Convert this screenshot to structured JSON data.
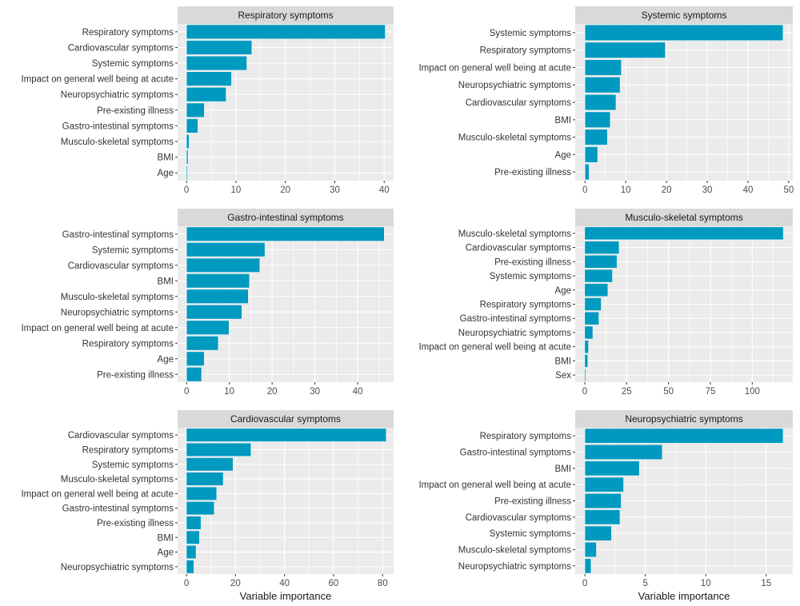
{
  "figure": {
    "bar_color": "#0099BF",
    "panel_bg": "#EBEBEB",
    "strip_bg": "#D9D9D9",
    "grid_color": "#FFFFFF"
  },
  "chart_data": [
    {
      "type": "bar",
      "orientation": "horizontal",
      "title": "Respiratory symptoms",
      "xlabel": "",
      "ylabel": "",
      "categories": [
        "Respiratory symptoms",
        "Cardiovascular symptoms",
        "Systemic symptoms",
        "Impact on general well being at acute",
        "Neuropsychiatric symptoms",
        "Pre-existing illness",
        "Gastro-intestinal symptoms",
        "Musculo-skeletal symptoms",
        "BMI",
        "Age"
      ],
      "values": [
        40.2,
        13.2,
        12.2,
        9.1,
        8.0,
        3.6,
        2.3,
        0.5,
        0.3,
        0.2
      ],
      "xlim": [
        -1.8,
        41.9
      ],
      "xticks": [
        0,
        10,
        20,
        30,
        40
      ],
      "grid": true
    },
    {
      "type": "bar",
      "orientation": "horizontal",
      "title": "Systemic symptoms",
      "xlabel": "",
      "ylabel": "",
      "categories": [
        "Systemic symptoms",
        "Respiratory symptoms",
        "Impact on general well being at acute",
        "Neuropsychiatric symptoms",
        "Cardiovascular symptoms",
        "BMI",
        "Musculo-skeletal symptoms",
        "Age",
        "Pre-existing illness"
      ],
      "values": [
        48.6,
        19.7,
        8.9,
        8.6,
        7.6,
        6.2,
        5.5,
        3.1,
        1.0
      ],
      "xlim": [
        -2.4,
        51.0
      ],
      "xticks": [
        0,
        10,
        20,
        30,
        40,
        50
      ],
      "grid": true
    },
    {
      "type": "bar",
      "orientation": "horizontal",
      "title": "Gastro-intestinal symptoms",
      "xlabel": "",
      "ylabel": "",
      "categories": [
        "Gastro-intestinal symptoms",
        "Systemic symptoms",
        "Cardiovascular symptoms",
        "BMI",
        "Musculo-skeletal symptoms",
        "Neuropsychiatric symptoms",
        "Impact on general well being at acute",
        "Respiratory symptoms",
        "Age",
        "Pre-existing illness"
      ],
      "values": [
        46.2,
        18.3,
        17.1,
        14.7,
        14.4,
        12.9,
        9.9,
        7.4,
        4.1,
        3.5
      ],
      "xlim": [
        -2.1,
        48.4
      ],
      "xticks": [
        0,
        10,
        20,
        30,
        40
      ],
      "grid": true
    },
    {
      "type": "bar",
      "orientation": "horizontal",
      "title": "Musculo-skeletal symptoms",
      "xlabel": "",
      "ylabel": "",
      "categories": [
        "Musculo-skeletal symptoms",
        "Cardiovascular symptoms",
        "Pre-existing illness",
        "Systemic symptoms",
        "Age",
        "Respiratory symptoms",
        "Gastro-intestinal symptoms",
        "Neuropsychiatric symptoms",
        "Impact on general well being at acute",
        "BMI",
        "Sex"
      ],
      "values": [
        118.5,
        20.5,
        19.2,
        16.5,
        13.8,
        9.8,
        8.4,
        4.8,
        2.2,
        1.8,
        0.5
      ],
      "xlim": [
        -5.7,
        124.2
      ],
      "xticks": [
        0,
        25,
        50,
        75,
        100
      ],
      "grid": true
    },
    {
      "type": "bar",
      "orientation": "horizontal",
      "title": "Cardiovascular symptoms",
      "xlabel": "Variable importance",
      "ylabel": "",
      "categories": [
        "Cardiovascular symptoms",
        "Respiratory symptoms",
        "Systemic symptoms",
        "Musculo-skeletal symptoms",
        "Impact on general well being at acute",
        "Gastro-intestinal symptoms",
        "Pre-existing illness",
        "BMI",
        "Age",
        "Neuropsychiatric symptoms"
      ],
      "values": [
        81.5,
        26.3,
        19.0,
        15.0,
        12.3,
        11.3,
        5.9,
        5.3,
        3.9,
        3.0
      ],
      "xlim": [
        -3.6,
        84.5
      ],
      "xticks": [
        0,
        20,
        40,
        60,
        80
      ],
      "grid": true
    },
    {
      "type": "bar",
      "orientation": "horizontal",
      "title": "Neuropsychiatric symptoms",
      "xlabel": "Variable importance",
      "ylabel": "",
      "categories": [
        "Respiratory symptoms",
        "Gastro-intestinal symptoms",
        "BMI",
        "Impact on general well being at acute",
        "Pre-existing illness",
        "Cardiovascular symptoms",
        "Systemic symptoms",
        "Musculo-skeletal symptoms",
        "Neuropsychiatric symptoms"
      ],
      "values": [
        16.4,
        6.4,
        4.5,
        3.2,
        3.0,
        2.9,
        2.2,
        0.95,
        0.5
      ],
      "xlim": [
        -0.8,
        17.2
      ],
      "xticks": [
        0,
        5,
        10,
        15
      ],
      "grid": true
    }
  ]
}
